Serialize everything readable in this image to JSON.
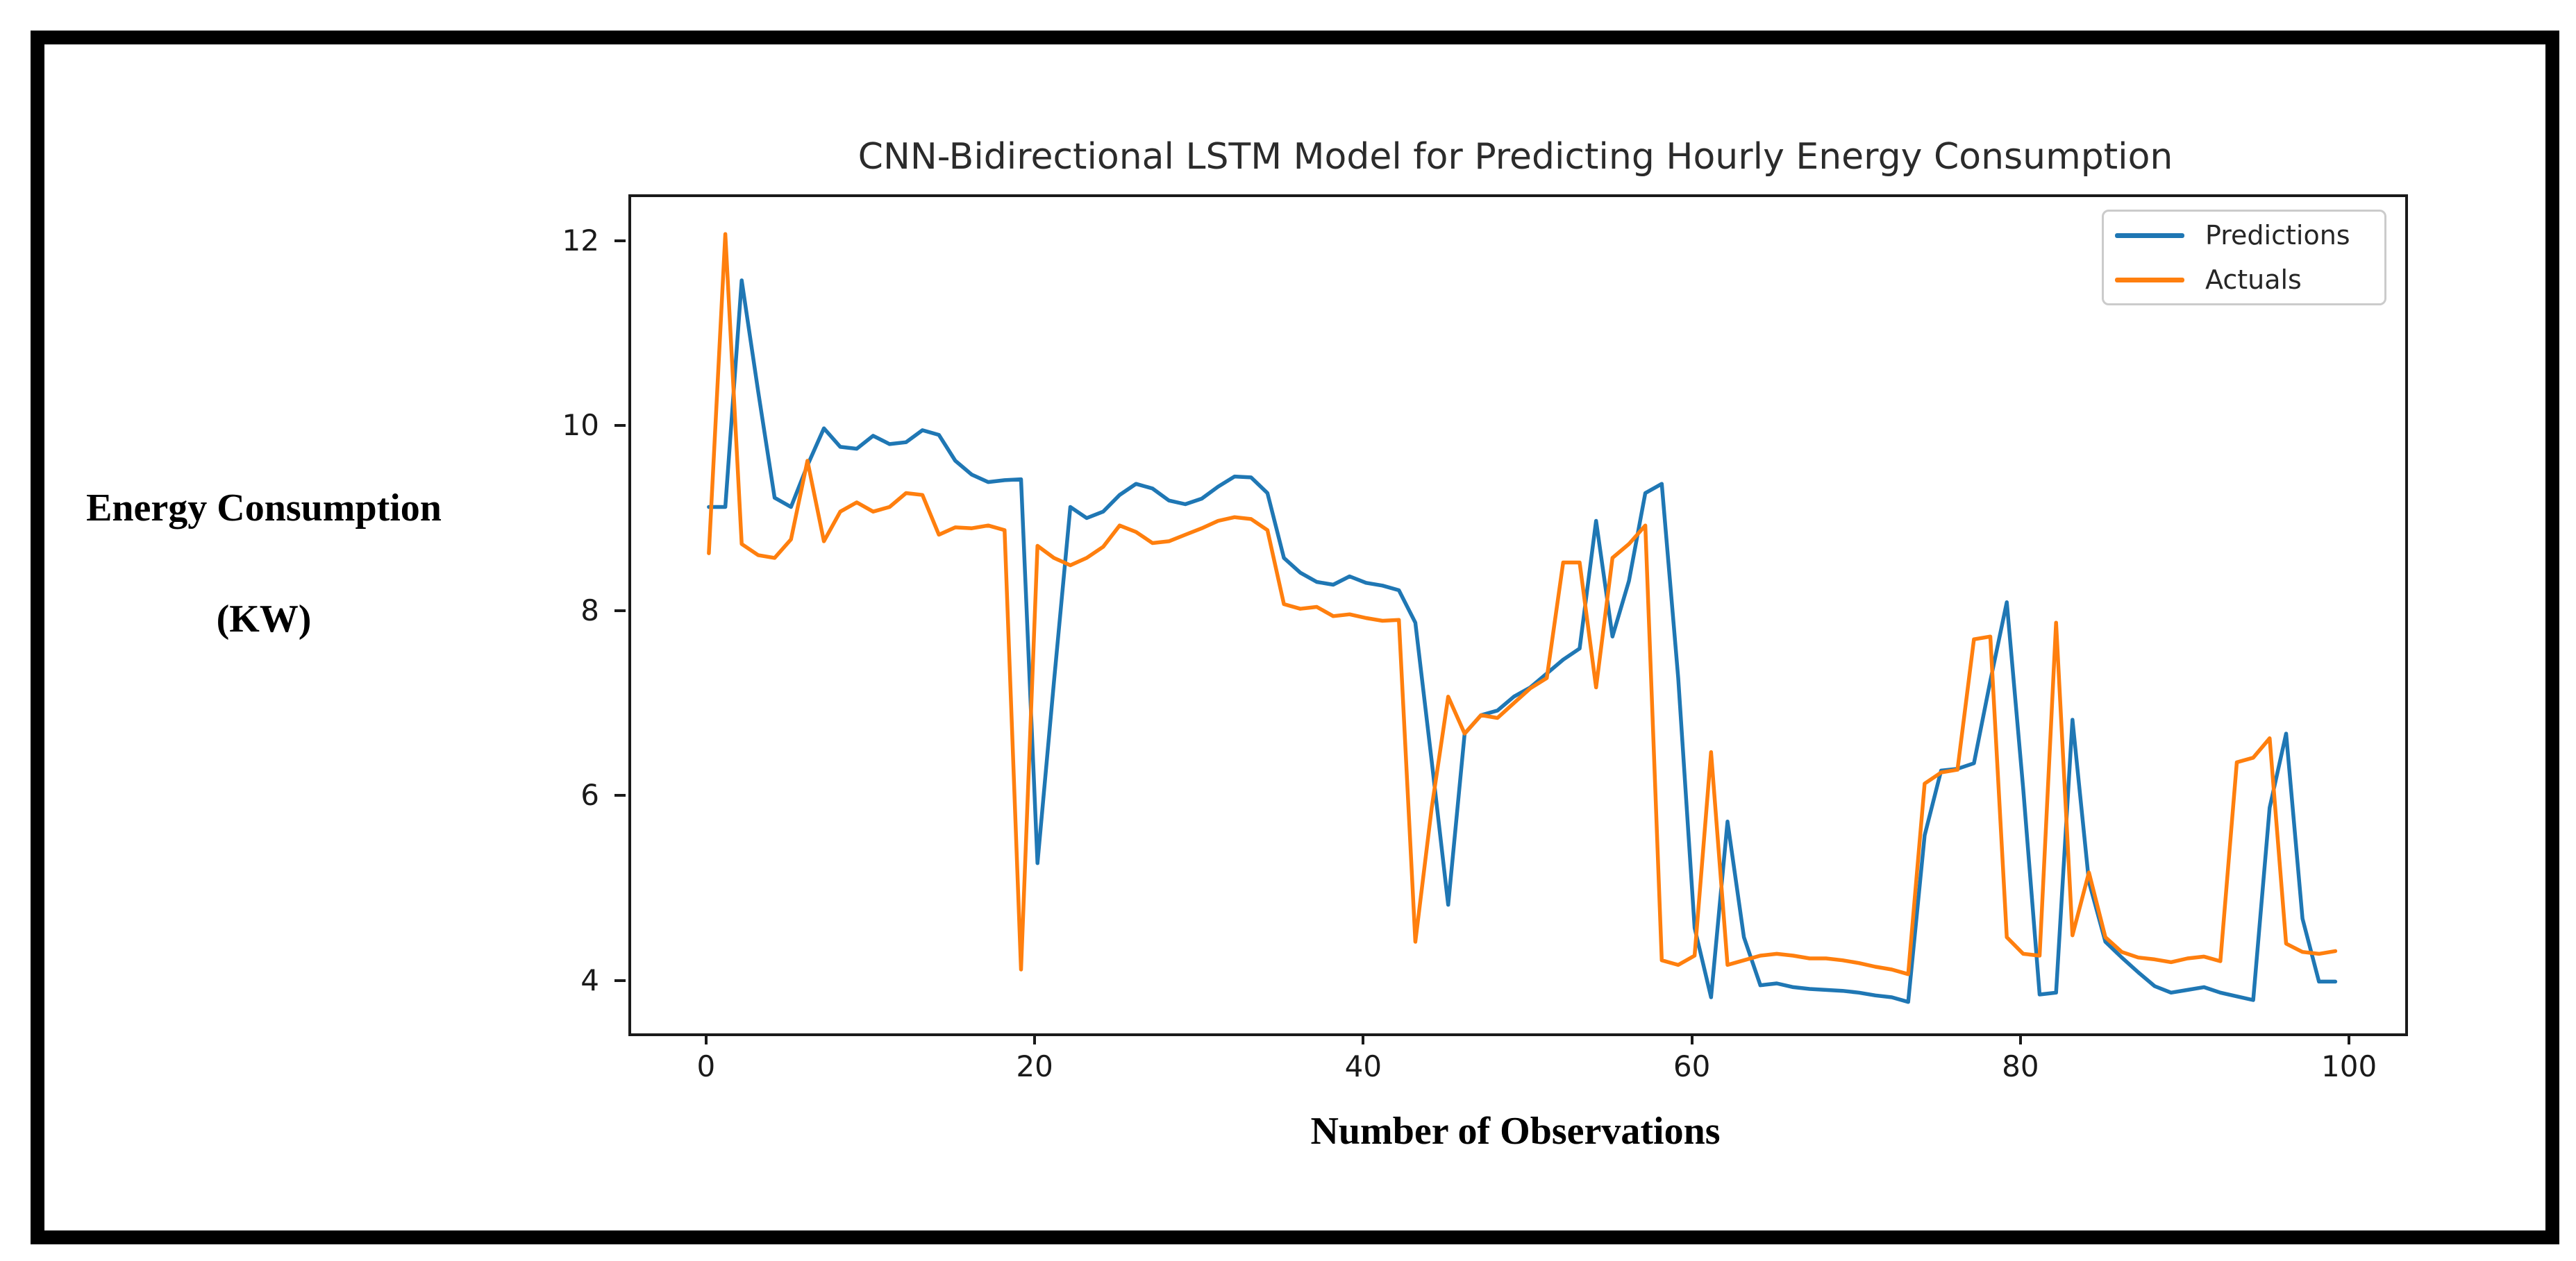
{
  "window": {
    "background": "#ffffff",
    "outer_frame_color": "#000000"
  },
  "chart_data": {
    "type": "line",
    "title": "CNN-Bidirectional LSTM Model for Predicting Hourly Energy Consumption",
    "xlabel": "Number of Observations",
    "ylabel_line1": "Energy Consumption",
    "ylabel_line2": "(KW)",
    "grid": false,
    "legend_position": "upper right",
    "xlim": [
      -4.73,
      103.25
    ],
    "ylim": [
      3.46,
      12.5
    ],
    "xticks": [
      0,
      20,
      40,
      60,
      80,
      100
    ],
    "yticks": [
      4,
      6,
      8,
      10,
      12
    ],
    "x_is_index": true,
    "n_points": 100,
    "series": [
      {
        "name": "Predictions",
        "color": "#1f77b4",
        "values": [
          9.15,
          9.15,
          11.6,
          10.4,
          9.25,
          9.15,
          9.6,
          10.0,
          9.8,
          9.78,
          9.92,
          9.83,
          9.85,
          9.98,
          9.93,
          9.65,
          9.5,
          9.42,
          9.44,
          9.45,
          5.3,
          7.25,
          9.15,
          9.03,
          9.1,
          9.28,
          9.4,
          9.35,
          9.22,
          9.18,
          9.24,
          9.37,
          9.48,
          9.47,
          9.3,
          8.6,
          8.44,
          8.34,
          8.31,
          8.4,
          8.33,
          8.3,
          8.25,
          7.9,
          6.4,
          4.85,
          6.7,
          6.9,
          6.95,
          7.1,
          7.2,
          7.35,
          7.5,
          7.62,
          9.0,
          7.75,
          8.35,
          9.3,
          9.4,
          7.3,
          4.6,
          3.85,
          5.75,
          4.5,
          3.98,
          4.0,
          3.96,
          3.94,
          3.93,
          3.92,
          3.9,
          3.87,
          3.85,
          3.8,
          5.6,
          6.3,
          6.32,
          6.38,
          7.27,
          8.12,
          6.1,
          3.88,
          3.9,
          6.85,
          5.1,
          4.45,
          4.28,
          4.12,
          3.97,
          3.9,
          3.93,
          3.96,
          3.9,
          3.86,
          3.82,
          5.9,
          6.7,
          4.7,
          4.02,
          4.02
        ]
      },
      {
        "name": "Actuals",
        "color": "#ff7f0e",
        "values": [
          8.65,
          12.1,
          8.75,
          8.63,
          8.6,
          8.8,
          9.65,
          8.78,
          9.1,
          9.2,
          9.1,
          9.15,
          9.3,
          9.28,
          8.85,
          8.93,
          8.92,
          8.95,
          8.9,
          4.15,
          8.73,
          8.6,
          8.52,
          8.6,
          8.72,
          8.95,
          8.88,
          8.76,
          8.78,
          8.85,
          8.92,
          9.0,
          9.04,
          9.02,
          8.9,
          8.1,
          8.05,
          8.07,
          7.97,
          7.99,
          7.95,
          7.92,
          7.93,
          4.45,
          5.9,
          7.1,
          6.7,
          6.9,
          6.87,
          7.03,
          7.19,
          7.3,
          8.55,
          8.55,
          7.2,
          8.6,
          8.75,
          8.95,
          4.25,
          4.2,
          4.3,
          6.5,
          4.2,
          4.25,
          4.3,
          4.32,
          4.3,
          4.27,
          4.27,
          4.25,
          4.22,
          4.18,
          4.15,
          4.1,
          6.16,
          6.28,
          6.31,
          7.72,
          7.75,
          4.5,
          4.32,
          4.3,
          7.9,
          4.52,
          5.2,
          4.5,
          4.34,
          4.28,
          4.26,
          4.23,
          4.27,
          4.29,
          4.24,
          6.39,
          6.44,
          6.65,
          4.43,
          4.34,
          4.32,
          4.35
        ]
      }
    ]
  },
  "style": {
    "line_width": 5.5,
    "spine_color": "#1a1a1a",
    "tick_label_color": "#1a1a1a",
    "title_color": "#2b2b2b",
    "legend_text_color": "#262626"
  }
}
